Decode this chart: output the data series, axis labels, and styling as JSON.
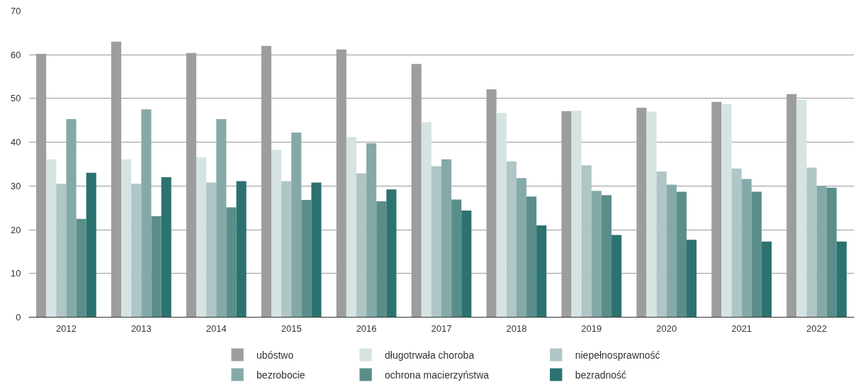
{
  "chart_data": {
    "type": "bar",
    "categories": [
      "2012",
      "2013",
      "2014",
      "2015",
      "2016",
      "2017",
      "2018",
      "2019",
      "2020",
      "2021",
      "2022"
    ],
    "series": [
      {
        "name": "ubóstwo",
        "color": "#9d9d9d",
        "values": [
          60.2,
          63.0,
          60.4,
          62.0,
          61.2,
          57.9,
          52.1,
          47.1,
          47.9,
          49.2,
          51.0
        ]
      },
      {
        "name": "długotrwała choroba",
        "color": "#d6e3e3",
        "values": [
          36.1,
          36.1,
          36.6,
          38.3,
          41.2,
          44.6,
          46.7,
          47.2,
          47.0,
          48.7,
          49.7
        ]
      },
      {
        "name": "niepełnosprawność",
        "color": "#afc5c6",
        "values": [
          30.5,
          30.5,
          30.8,
          31.1,
          32.9,
          34.5,
          35.6,
          34.7,
          33.3,
          34.0,
          34.2
        ]
      },
      {
        "name": "bezrobocie",
        "color": "#84aaa8",
        "values": [
          45.3,
          47.5,
          45.3,
          42.2,
          39.8,
          36.1,
          31.8,
          28.9,
          30.3,
          31.6,
          30.0
        ]
      },
      {
        "name": "ochrona macierzyństwa",
        "color": "#5a8e8b",
        "values": [
          22.5,
          23.1,
          25.1,
          26.8,
          26.5,
          26.9,
          27.6,
          27.9,
          28.7,
          28.7,
          29.6
        ]
      },
      {
        "name": "bezradność",
        "color": "#2b7270",
        "values": [
          33.0,
          32.0,
          31.1,
          30.8,
          29.2,
          24.4,
          21.0,
          18.8,
          17.7,
          17.3,
          17.3
        ]
      }
    ],
    "ylim": [
      0,
      70
    ],
    "yticks": [
      0,
      10,
      20,
      30,
      40,
      50,
      60,
      70
    ],
    "grid": "y",
    "legend": "bottom"
  }
}
